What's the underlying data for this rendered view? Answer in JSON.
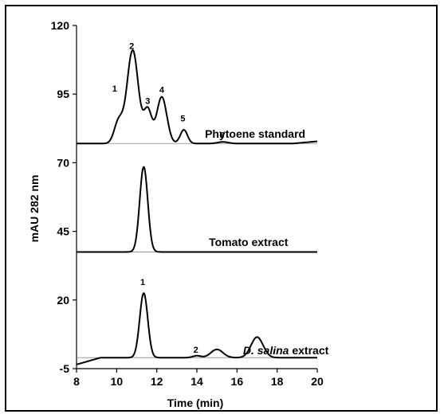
{
  "chart_data": {
    "type": "line",
    "title": "",
    "xlabel": "Time (min)",
    "ylabel": "mAU 282 nm",
    "xlim": [
      8,
      20
    ],
    "ylim": [
      -5,
      120
    ],
    "x_ticks": [
      "8",
      "10",
      "12",
      "14",
      "16",
      "18",
      "20"
    ],
    "y_ticks": [
      "-5",
      "20",
      "45",
      "70",
      "95",
      "120"
    ],
    "grid": false,
    "legend": "none",
    "series": [
      {
        "name": "Phytoene standard",
        "label_x": 14.4,
        "label_y": 78,
        "baseline": 77,
        "peaks": [
          {
            "center": 10.1,
            "height": 8,
            "width": 0.22
          },
          {
            "center": 10.8,
            "height": 34,
            "width": 0.28
          },
          {
            "center": 11.55,
            "height": 12,
            "width": 0.2
          },
          {
            "center": 12.25,
            "height": 17,
            "width": 0.25
          },
          {
            "center": 13.35,
            "height": 5,
            "width": 0.18
          },
          {
            "center": 15.3,
            "height": 0.6,
            "width": 0.25
          }
        ],
        "peak_labels": [
          {
            "text": "1",
            "x": 9.9,
            "y": 96
          },
          {
            "text": "2",
            "x": 10.75,
            "y": 111.5
          },
          {
            "text": "3",
            "x": 11.55,
            "y": 91.5
          },
          {
            "text": "4",
            "x": 12.25,
            "y": 95.5
          },
          {
            "text": "5",
            "x": 13.3,
            "y": 85
          },
          {
            "text": "6",
            "x": 15.25,
            "y": 79
          }
        ]
      },
      {
        "name": "Tomato extract",
        "label_x": 14.6,
        "label_y": 38.5,
        "baseline": 37.5,
        "peaks": [
          {
            "center": 11.35,
            "height": 31,
            "width": 0.2
          }
        ],
        "peak_labels": []
      },
      {
        "name": "D. salina extract",
        "name_italic": "D. salina",
        "name_rest": " extract",
        "label_x": 16.3,
        "label_y": -1,
        "baseline": -1,
        "peaks": [
          {
            "center": 11.35,
            "height": 23.5,
            "width": 0.2
          },
          {
            "center": 14.0,
            "height": 0.7,
            "width": 0.2
          },
          {
            "center": 15.0,
            "height": 3,
            "width": 0.3
          },
          {
            "center": 17.0,
            "height": 7.5,
            "width": 0.3
          }
        ],
        "peak_labels": [
          {
            "text": "1",
            "x": 11.3,
            "y": 25.5
          },
          {
            "text": "2",
            "x": 13.95,
            "y": 0.8
          }
        ]
      }
    ]
  }
}
